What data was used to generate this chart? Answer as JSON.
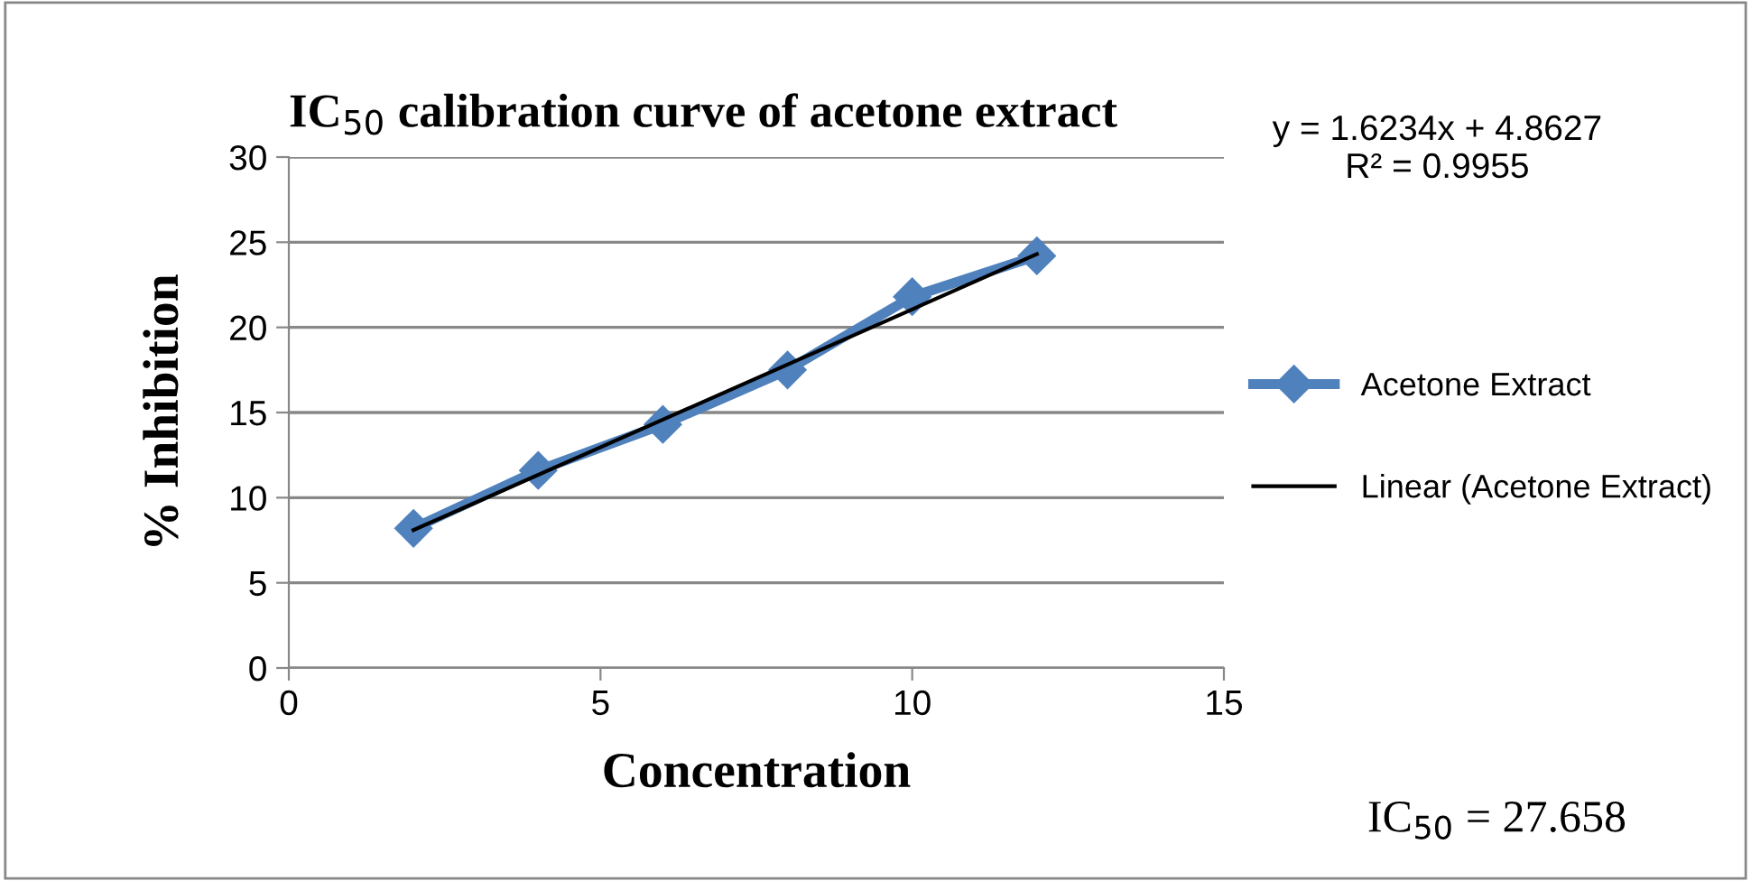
{
  "chart_data": {
    "type": "line",
    "title": "IC$_{50}$ calibration curve of acetone extract",
    "xlabel": "Concentration",
    "ylabel": "% Inhibition",
    "x": [
      2,
      4,
      6,
      8,
      10,
      12
    ],
    "series": [
      {
        "name": "Acetone Extract",
        "color": "#4f81bd",
        "values": [
          8.2,
          11.6,
          14.3,
          17.5,
          21.8,
          24.2
        ],
        "marker": "diamond"
      },
      {
        "name": "Linear (Acetone Extract)",
        "color": "#000000",
        "type": "line",
        "x": [
          2,
          12
        ],
        "values": [
          8.1,
          24.3
        ],
        "marker": "none"
      }
    ],
    "xlim": [
      0,
      15
    ],
    "xticks": [
      0,
      5,
      10,
      15
    ],
    "ylim": [
      0,
      30
    ],
    "yticks": [
      0,
      5,
      10,
      15,
      20,
      25,
      30
    ],
    "grid": "y",
    "legend": "right",
    "annotations": [
      "y = 1.6234x + 4.8627\nR² = 0.9955",
      "IC$_{50}$ = 27.658"
    ]
  }
}
